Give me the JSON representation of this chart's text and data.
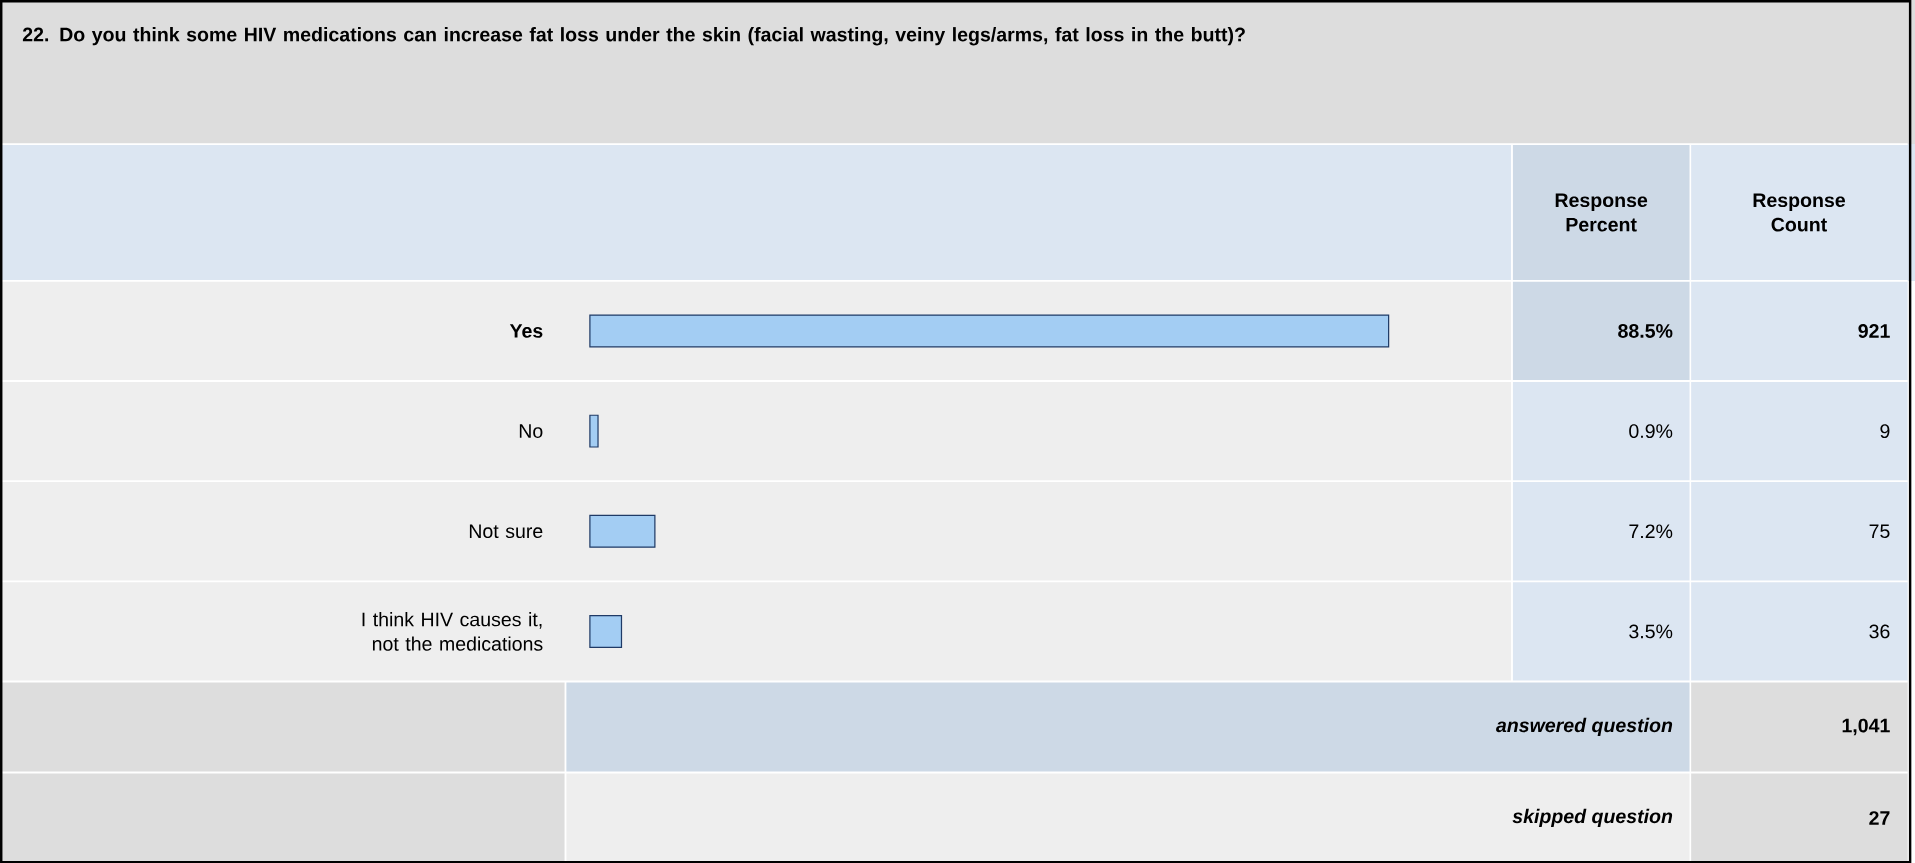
{
  "chart_data": {
    "type": "bar",
    "orientation": "horizontal",
    "title": "22. Do you think some HIV medications can increase fat loss under the skin (facial wasting, veiny legs/arms, fat loss in the butt)?",
    "categories": [
      "Yes",
      "No",
      "Not sure",
      "I think HIV causes it, not the medications"
    ],
    "values": [
      88.5,
      0.9,
      7.2,
      3.5
    ],
    "value_labels": [
      "88.5%",
      "0.9%",
      "7.2%",
      "3.5%"
    ],
    "color": "#a3cdf3",
    "annotations": [
      "Response Percent",
      "Response Count",
      "921",
      "9",
      "75",
      "36",
      "answered question",
      "1,041",
      "skipped question",
      "27"
    ]
  }
}
